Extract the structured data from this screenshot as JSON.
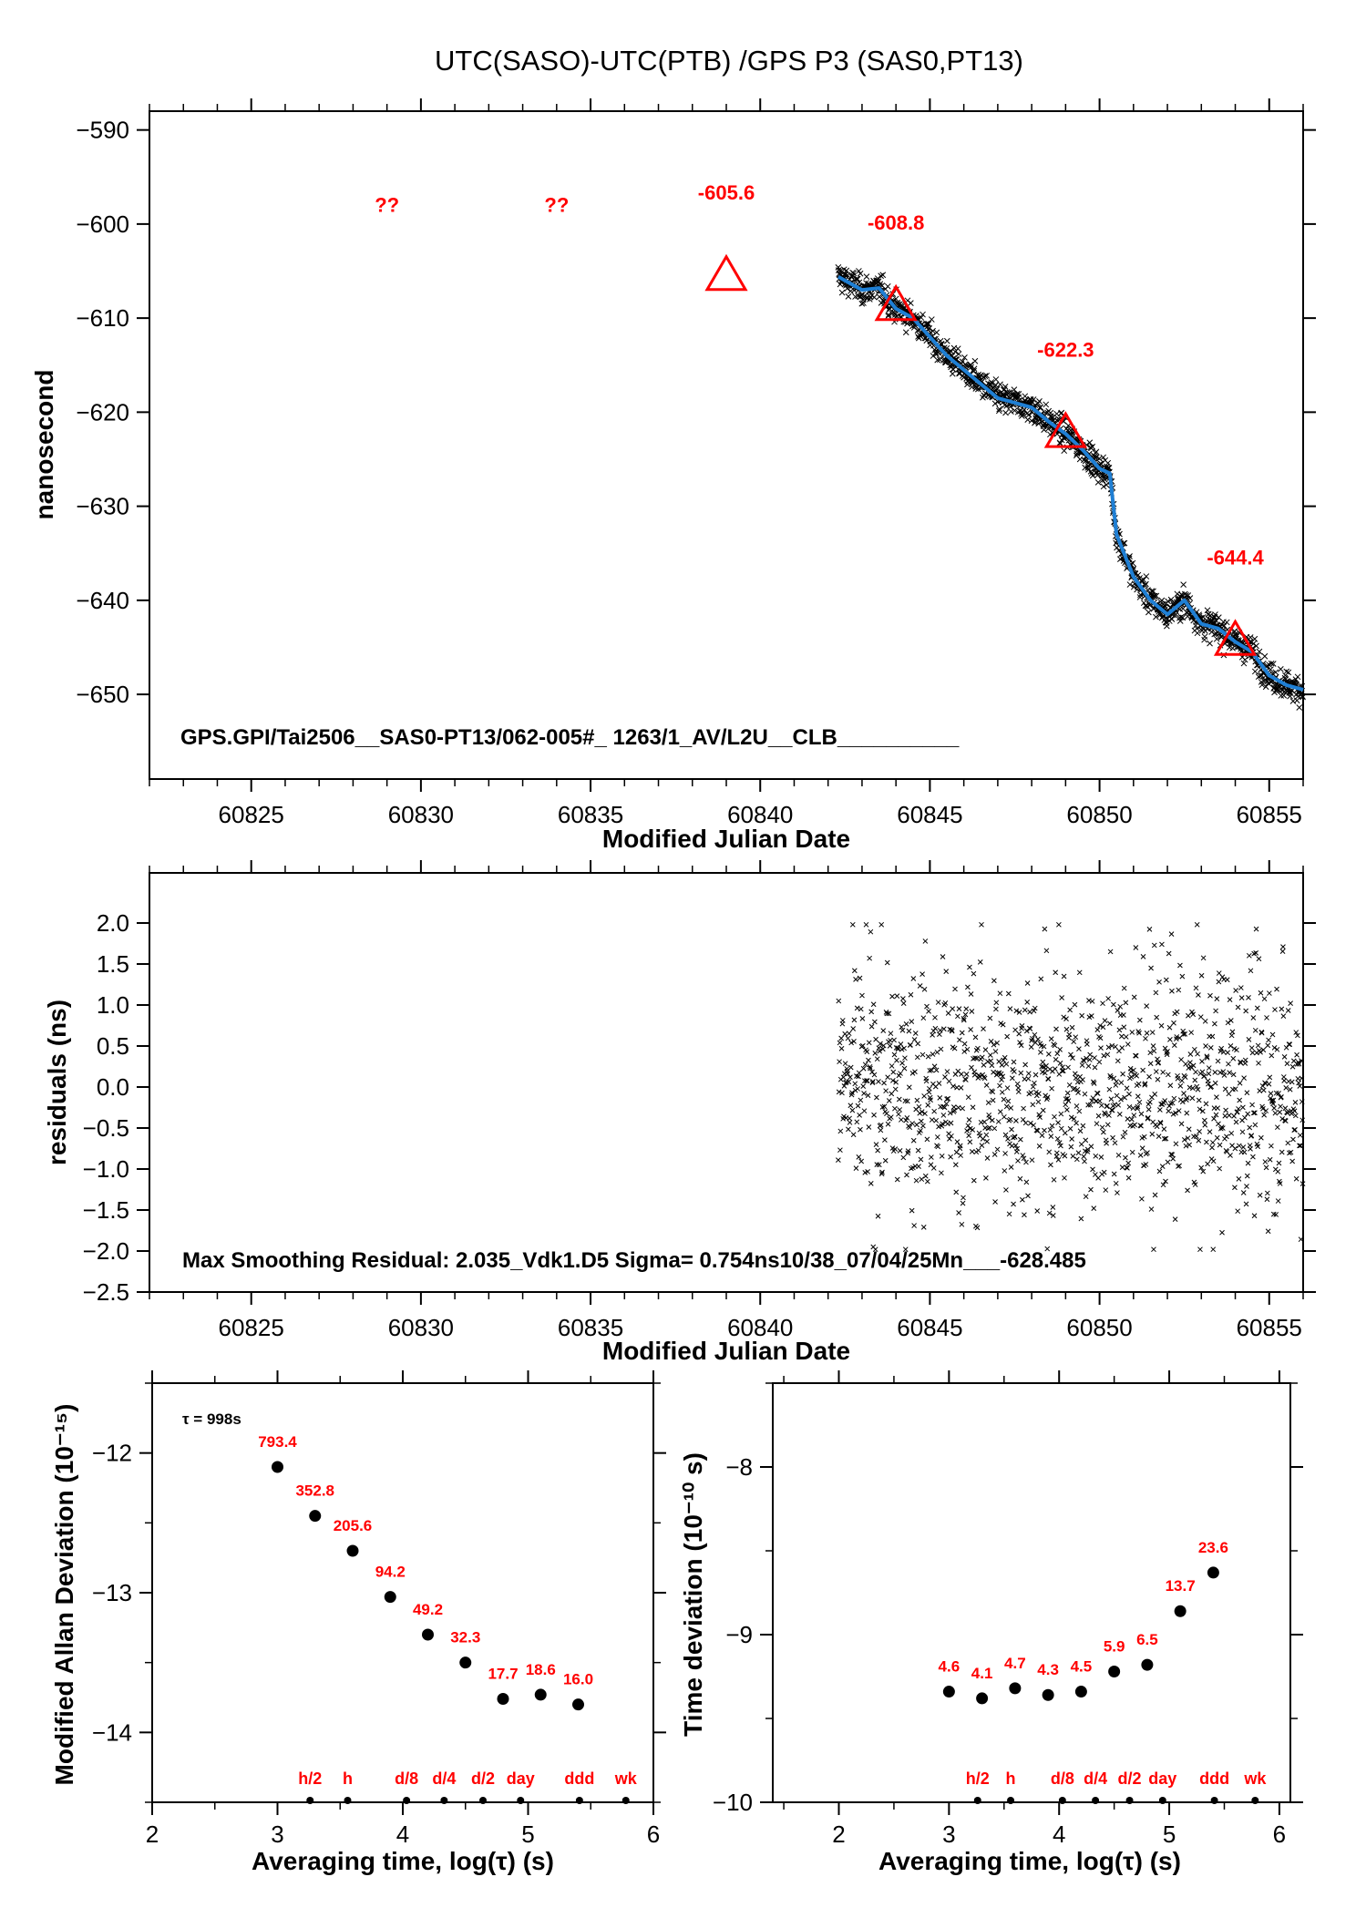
{
  "page_title": "UTC(SASO)-UTC(PTB)  /GPS  P3  (SAS0,PT13)",
  "colors": {
    "points": "#000000",
    "smooth_line": "#1f7fd4",
    "annotation": "#ff0000",
    "frame": "#000000"
  },
  "chart_data": [
    {
      "id": "time_series",
      "type": "scatter",
      "title": "UTC(SASO)-UTC(PTB)  /GPS  P3  (SAS0,PT13)",
      "xlabel": "Modified Julian Date",
      "ylabel": "nanosecond",
      "xlim": [
        60822,
        60856
      ],
      "ylim": [
        -659,
        -588
      ],
      "xticks": [
        60825,
        60830,
        60835,
        60840,
        60845,
        60850,
        60855
      ],
      "yticks": [
        -590,
        -600,
        -610,
        -620,
        -630,
        -640,
        -650
      ],
      "grid": false,
      "series": [
        {
          "marker": "x",
          "x_range": [
            60842.3,
            60856
          ],
          "smooth_curve": [
            [
              60842.3,
              -605.6
            ],
            [
              60843.0,
              -607.0
            ],
            [
              60843.5,
              -606.8
            ],
            [
              60844.0,
              -609.0
            ],
            [
              60844.5,
              -610.0
            ],
            [
              60845.0,
              -612.0
            ],
            [
              60845.5,
              -614.0
            ],
            [
              60846.0,
              -615.5
            ],
            [
              60846.5,
              -617.0
            ],
            [
              60847.0,
              -618.5
            ],
            [
              60847.5,
              -619.0
            ],
            [
              60848.0,
              -619.5
            ],
            [
              60848.5,
              -621.0
            ],
            [
              60849.0,
              -622.3
            ],
            [
              60849.5,
              -624.0
            ],
            [
              60850.0,
              -626.0
            ],
            [
              60850.3,
              -626.5
            ],
            [
              60850.5,
              -633.0
            ],
            [
              60851.0,
              -637.5
            ],
            [
              60851.5,
              -640.0
            ],
            [
              60852.0,
              -641.5
            ],
            [
              60852.5,
              -640.0
            ],
            [
              60853.0,
              -642.5
            ],
            [
              60853.5,
              -643.0
            ],
            [
              60854.0,
              -644.4
            ],
            [
              60854.5,
              -645.5
            ],
            [
              60855.0,
              -648.0
            ],
            [
              60855.5,
              -649.0
            ],
            [
              60856.0,
              -649.5
            ]
          ]
        }
      ],
      "triangles": [
        {
          "x": 60839.0,
          "y": -605.6,
          "label": "-605.6"
        },
        {
          "x": 60844.0,
          "y": -608.8,
          "label": "-608.8"
        },
        {
          "x": 60849.0,
          "y": -622.3,
          "label": "-622.3"
        },
        {
          "x": 60854.0,
          "y": -644.4,
          "label": "-644.4"
        }
      ],
      "question_marks": [
        {
          "x": 60829.0,
          "label": "??"
        },
        {
          "x": 60834.0,
          "label": "??"
        }
      ],
      "footnote": "GPS.GPI/Tai2506__SAS0-PT13/062-005#_  1263/1_AV/L2U__CLB__________"
    },
    {
      "id": "residuals",
      "type": "scatter",
      "xlabel": "Modified Julian Date",
      "ylabel": "residuals (ns)",
      "xlim": [
        60822,
        60856
      ],
      "ylim": [
        -2.5,
        2.5
      ],
      "xticks": [
        60825,
        60830,
        60835,
        60840,
        60845,
        60850,
        60855
      ],
      "yticks": [
        2.0,
        1.5,
        1.0,
        0.5,
        0.0,
        -0.5,
        -1.0,
        -1.5,
        -2.0,
        -2.5
      ],
      "ytick_labels": [
        "2.0",
        "1.5",
        "1.0",
        "0.5",
        "0.0",
        "−0.5",
        "−1.0",
        "−1.5",
        "−2.0",
        "−2.5"
      ],
      "grid": false,
      "x_range": [
        60842.3,
        60856
      ],
      "sigma": 0.754,
      "max_residual": 2.035,
      "footnote": "Max Smoothing Residual: 2.035_Vdk1.D5  Sigma= 0.754ns10/38_07/04/25Mn___-628.485"
    },
    {
      "id": "mod_allan",
      "type": "scatter",
      "xlabel": "Averaging time, log(τ) (s)",
      "ylabel": "Modified Allan Deviation (10⁻¹⁵)",
      "xlim": [
        2,
        6
      ],
      "ylim": [
        -14.5,
        -11.5
      ],
      "xticks": [
        2,
        3,
        4,
        5,
        6
      ],
      "yticks": [
        -12,
        -13,
        -14
      ],
      "grid": false,
      "tau_note": "τ = 998s",
      "points": [
        {
          "x": 3.0,
          "y": -12.1,
          "label": "793.4"
        },
        {
          "x": 3.3,
          "y": -12.45,
          "label": "352.8"
        },
        {
          "x": 3.6,
          "y": -12.7,
          "label": "205.6"
        },
        {
          "x": 3.9,
          "y": -13.03,
          "label": "94.2"
        },
        {
          "x": 4.2,
          "y": -13.3,
          "label": "49.2"
        },
        {
          "x": 4.5,
          "y": -13.5,
          "label": "32.3"
        },
        {
          "x": 4.8,
          "y": -13.76,
          "label": "17.7"
        },
        {
          "x": 5.1,
          "y": -13.73,
          "label": "18.6"
        },
        {
          "x": 5.4,
          "y": -13.8,
          "label": "16.0"
        }
      ],
      "markers": [
        {
          "x": 3.26,
          "label": "h/2"
        },
        {
          "x": 3.56,
          "label": "h"
        },
        {
          "x": 4.03,
          "label": "d/8"
        },
        {
          "x": 4.33,
          "label": "d/4"
        },
        {
          "x": 4.64,
          "label": "d/2"
        },
        {
          "x": 4.94,
          "label": "day"
        },
        {
          "x": 5.41,
          "label": "ddd"
        },
        {
          "x": 5.78,
          "label": "wk"
        }
      ]
    },
    {
      "id": "time_dev",
      "type": "scatter",
      "xlabel": "Averaging time, log(τ) (s)",
      "ylabel": "Time deviation (10⁻¹⁰ s)",
      "xlim": [
        1.4,
        6.1
      ],
      "ylim": [
        -10,
        -7.5
      ],
      "xticks": [
        2,
        3,
        4,
        5,
        6
      ],
      "yticks": [
        -8,
        -9,
        -10
      ],
      "grid": false,
      "points": [
        {
          "x": 3.0,
          "y": -9.34,
          "label": "4.6"
        },
        {
          "x": 3.3,
          "y": -9.38,
          "label": "4.1"
        },
        {
          "x": 3.6,
          "y": -9.32,
          "label": "4.7"
        },
        {
          "x": 3.9,
          "y": -9.36,
          "label": "4.3"
        },
        {
          "x": 4.2,
          "y": -9.34,
          "label": "4.5"
        },
        {
          "x": 4.5,
          "y": -9.22,
          "label": "5.9"
        },
        {
          "x": 4.8,
          "y": -9.18,
          "label": "6.5"
        },
        {
          "x": 5.1,
          "y": -8.86,
          "label": "13.7"
        },
        {
          "x": 5.4,
          "y": -8.63,
          "label": "23.6"
        }
      ],
      "markers": [
        {
          "x": 3.26,
          "label": "h/2"
        },
        {
          "x": 3.56,
          "label": "h"
        },
        {
          "x": 4.03,
          "label": "d/8"
        },
        {
          "x": 4.33,
          "label": "d/4"
        },
        {
          "x": 4.64,
          "label": "d/2"
        },
        {
          "x": 4.94,
          "label": "day"
        },
        {
          "x": 5.41,
          "label": "ddd"
        },
        {
          "x": 5.78,
          "label": "wk"
        }
      ]
    }
  ]
}
